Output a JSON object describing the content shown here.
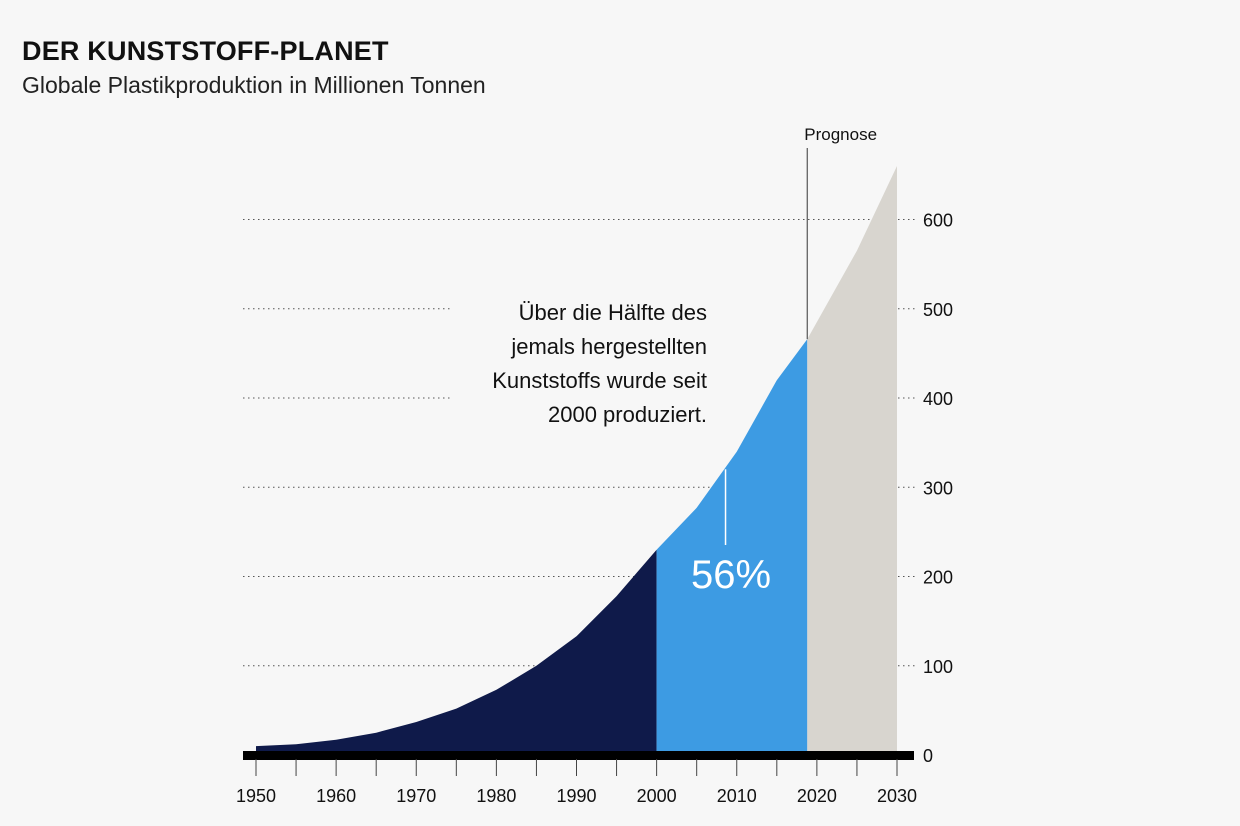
{
  "header": {
    "title": "DER KUNSTSTOFF-PLANET",
    "subtitle": "Globale Plastikproduktion in Millionen Tonnen"
  },
  "chart_data": {
    "type": "area",
    "title": "DER KUNSTSTOFF-PLANET",
    "subtitle": "Globale Plastikproduktion in Millionen Tonnen",
    "xlabel": "",
    "ylabel": "",
    "xlim": [
      1950,
      2030
    ],
    "ylim": [
      0,
      650
    ],
    "x_ticks": [
      1950,
      1960,
      1970,
      1980,
      1990,
      2000,
      2010,
      2020,
      2030
    ],
    "y_ticks": [
      0,
      100,
      200,
      300,
      400,
      500,
      600
    ],
    "grid": "horizontal dotted",
    "colors": {
      "before_2000": "#0f1a4a",
      "2000_to_2018": "#3d9be3",
      "prognose": "#d8d5cf",
      "axis": "#000000"
    },
    "segments": [
      {
        "from": 1950,
        "to": 2000,
        "color": "before_2000"
      },
      {
        "from": 2000,
        "to": 2018.8,
        "color": "2000_to_2018"
      },
      {
        "from": 2018.8,
        "to": 2030,
        "color": "prognose"
      }
    ],
    "series": [
      {
        "x": [
          1950,
          1955,
          1960,
          1965,
          1970,
          1975,
          1980,
          1985,
          1990,
          1995,
          2000,
          2005,
          2010,
          2015,
          2018.8,
          2025,
          2030
        ],
        "values": [
          10,
          12,
          17,
          25,
          37,
          52,
          73,
          100,
          133,
          178,
          230,
          277,
          340,
          420,
          466,
          565,
          660
        ]
      }
    ],
    "prognose_start": 2018.8,
    "prognose_label": "Prognose",
    "annotation": {
      "lines": [
        "Über die Hälfte des",
        "jemals hergestellten",
        "Kunststoffs wurde seit",
        "2000 produziert."
      ],
      "pointer_x": 2008.6,
      "share_label": "56%"
    }
  }
}
